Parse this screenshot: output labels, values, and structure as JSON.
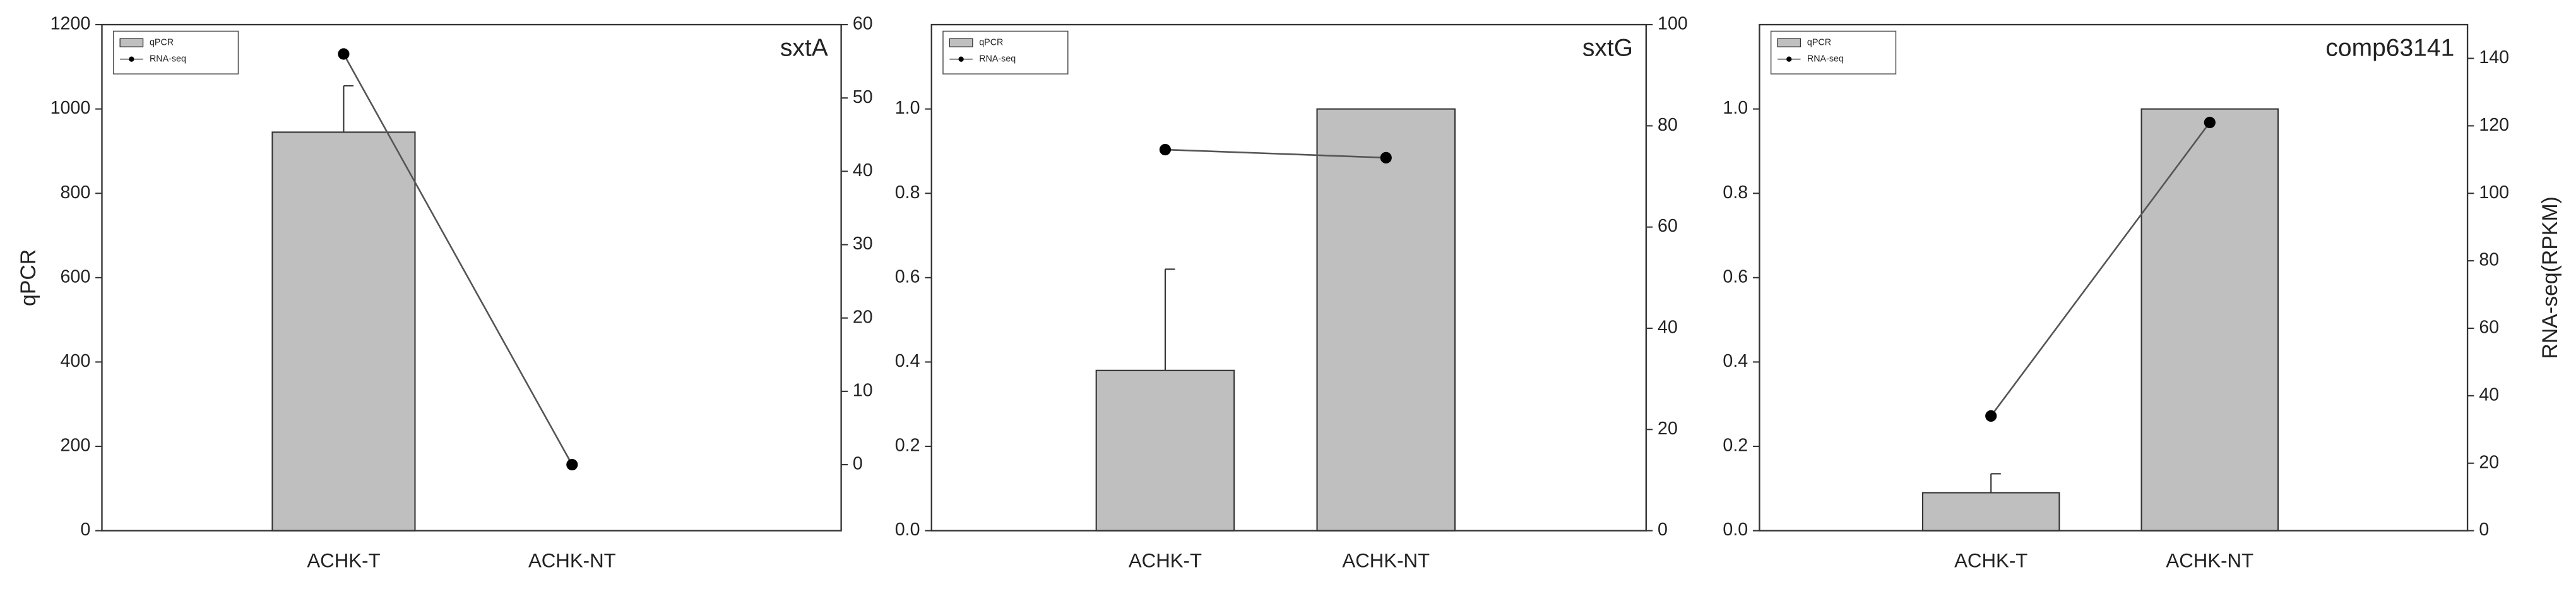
{
  "chart_data": [
    {
      "type": "combo",
      "title": "sxtA",
      "ylabel": "qPCR",
      "categories": [
        "ACHK-T",
        "ACHK-NT"
      ],
      "series": [
        {
          "name": "qPCR",
          "type": "bar",
          "color": "#bfbfbf",
          "values": [
            945,
            0
          ],
          "errors": [
            110,
            null
          ]
        },
        {
          "name": "RNA-seq",
          "type": "line",
          "axis": "y2",
          "color": "#000000",
          "values": [
            56,
            0
          ]
        }
      ],
      "ylim": [
        0,
        1200
      ],
      "yticks": [
        0,
        200,
        400,
        600,
        800,
        1000,
        1200
      ],
      "y2lim": [
        -9,
        60
      ],
      "y2ticks": [
        0,
        10,
        20,
        30,
        40,
        50,
        60
      ]
    },
    {
      "type": "combo",
      "title": "sxtG",
      "categories": [
        "ACHK-T",
        "ACHK-NT"
      ],
      "series": [
        {
          "name": "qPCR",
          "type": "bar",
          "color": "#bfbfbf",
          "values": [
            0.38,
            1.0
          ],
          "errors": [
            0.24,
            null
          ]
        },
        {
          "name": "RNA-seq",
          "type": "line",
          "axis": "y2",
          "color": "#000000",
          "values": [
            75.3,
            73.7
          ]
        }
      ],
      "ylim": [
        0,
        1.2
      ],
      "yticks": [
        {
          "value": 0,
          "label": "0.0"
        },
        {
          "value": 0.2,
          "label": "0.2"
        },
        {
          "value": 0.4,
          "label": "0.4"
        },
        {
          "value": 0.6,
          "label": "0.6"
        },
        {
          "value": 0.8,
          "label": "0.8"
        },
        {
          "value": 1,
          "label": "1.0"
        }
      ],
      "y2lim": [
        0,
        100
      ],
      "y2ticks": [
        0,
        20,
        40,
        60,
        80,
        100
      ]
    },
    {
      "type": "combo",
      "title": "comp63141",
      "y2label": "RNA-seq(RPKM)",
      "categories": [
        "ACHK-T",
        "ACHK-NT"
      ],
      "series": [
        {
          "name": "qPCR",
          "type": "bar",
          "color": "#bfbfbf",
          "values": [
            0.09,
            1.0
          ],
          "errors": [
            0.045,
            null
          ]
        },
        {
          "name": "RNA-seq",
          "type": "line",
          "axis": "y2",
          "color": "#000000",
          "values": [
            34,
            121
          ]
        }
      ],
      "ylim": [
        0,
        1.2
      ],
      "yticks": [
        {
          "value": 0,
          "label": "0.0"
        },
        {
          "value": 0.2,
          "label": "0.2"
        },
        {
          "value": 0.4,
          "label": "0.4"
        },
        {
          "value": 0.6,
          "label": "0.6"
        },
        {
          "value": 0.8,
          "label": "0.8"
        },
        {
          "value": 1,
          "label": "1.0"
        }
      ],
      "y2lim": [
        0,
        150
      ],
      "y2ticks": [
        0,
        20,
        40,
        60,
        80,
        100,
        120,
        140
      ]
    }
  ]
}
